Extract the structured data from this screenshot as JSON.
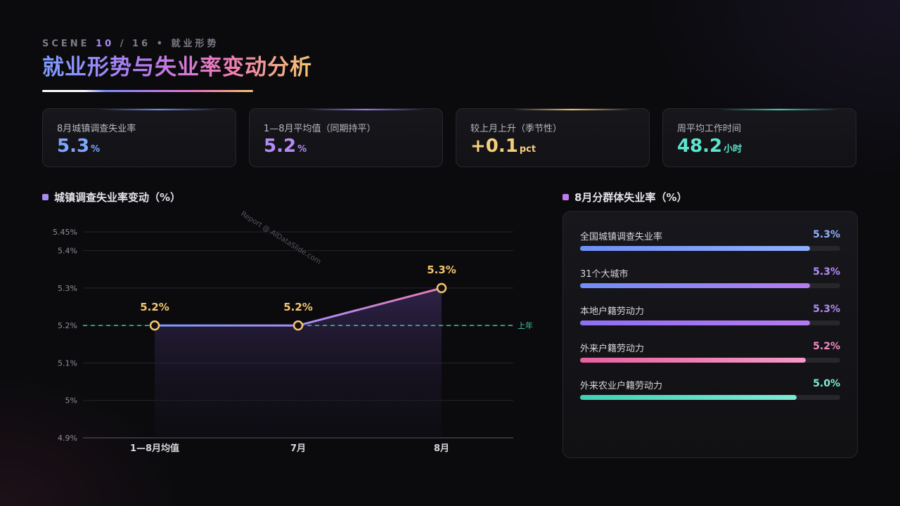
{
  "header": {
    "scene_prefix": "SCENE",
    "scene_current": "10",
    "scene_total": "/ 16",
    "scene_topic": "• 就业形势",
    "title": "就业形势与失业率变动分析"
  },
  "kpis": [
    {
      "label": "8月城镇调查失业率",
      "value": "5.3",
      "unit": "%",
      "color": "#7fa6ff"
    },
    {
      "label": "1—8月平均值（同期持平）",
      "value": "5.2",
      "unit": "%",
      "color": "#b58cf5"
    },
    {
      "label": "较上月上升（季节性）",
      "value": "+0.1",
      "unit": "pct",
      "color": "#f4cf7a"
    },
    {
      "label": "周平均工作时间",
      "value": "48.2",
      "unit": "小时",
      "color": "#5ee6cc"
    }
  ],
  "line_section": {
    "title": "城镇调查失业率变动（%）",
    "dot_color": "#a98cf2"
  },
  "bar_section": {
    "title": "8月分群体失业率（%）",
    "dot_color": "#c07af0"
  },
  "watermark": "Report @ AIDataSlide.com",
  "chart_data": [
    {
      "type": "line",
      "title": "城镇调查失业率变动（%）",
      "categories": [
        "1—8月均值",
        "7月",
        "8月"
      ],
      "values": [
        5.2,
        5.2,
        5.3
      ],
      "data_labels": [
        "5.2%",
        "5.2%",
        "5.3%"
      ],
      "yticks": [
        {
          "value": 4.9,
          "label": "4.9%"
        },
        {
          "value": 5.0,
          "label": "5%"
        },
        {
          "value": 5.1,
          "label": "5.1%"
        },
        {
          "value": 5.2,
          "label": "5.2%"
        },
        {
          "value": 5.3,
          "label": "5.3%"
        },
        {
          "value": 5.4,
          "label": "5.4%"
        },
        {
          "value": 5.45,
          "label": "5.45%"
        }
      ],
      "ylim": [
        4.9,
        5.45
      ],
      "reference_line": {
        "value": 5.2,
        "label": "上年",
        "color": "#3fc6a4"
      },
      "grid": true,
      "line_colors": [
        "#7b9cff",
        "#b57bf0",
        "#f07ab8"
      ],
      "marker_color": "#f4c56e"
    },
    {
      "type": "bar",
      "orientation": "horizontal",
      "title": "8月分群体失业率（%）",
      "categories": [
        "全国城镇调查失业率",
        "31个大城市",
        "本地户籍劳动力",
        "外来户籍劳动力",
        "外来农业户籍劳动力"
      ],
      "values": [
        5.3,
        5.3,
        5.3,
        5.2,
        5.0
      ],
      "value_labels": [
        "5.3%",
        "5.3%",
        "5.3%",
        "5.2%",
        "5.0%"
      ],
      "xlim": [
        0,
        6
      ],
      "label_colors": [
        "#8fb0ff",
        "#b58cf5",
        "#b58cf5",
        "#f58ac6",
        "#7eead6"
      ],
      "fills": [
        [
          "#6f8ff7",
          "#8fb0ff"
        ],
        [
          "#6f8ff7",
          "#b57bf0"
        ],
        [
          "#8f6ff2",
          "#b57bf0"
        ],
        [
          "#e8609f",
          "#f59ac8"
        ],
        [
          "#3fd1b5",
          "#7eead6"
        ]
      ]
    }
  ]
}
